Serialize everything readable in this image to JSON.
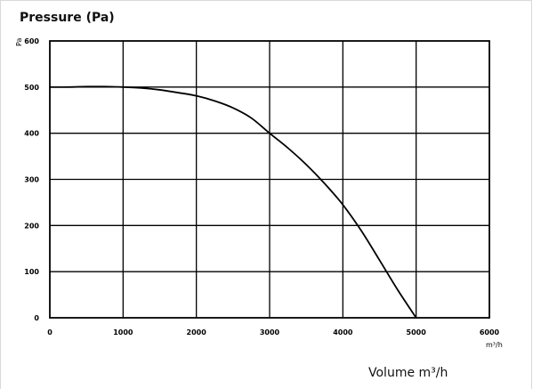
{
  "chart_data": {
    "type": "line",
    "title": "Pressure (Pa)",
    "ylabel": "Pa",
    "xlabel": "Volume m³/h",
    "x_unit": "m³/h",
    "xlim": [
      0,
      6000
    ],
    "ylim": [
      0,
      600
    ],
    "x_ticks": [
      0,
      1000,
      2000,
      3000,
      4000,
      5000,
      6000
    ],
    "y_ticks": [
      0,
      100,
      200,
      300,
      400,
      500,
      600
    ],
    "grid": true,
    "series": [
      {
        "color": "#000000",
        "x": [
          0,
          250,
          500,
          750,
          1000,
          1250,
          1500,
          1750,
          2000,
          2250,
          2500,
          2750,
          3000,
          3250,
          3500,
          3750,
          4000,
          4250,
          4500,
          4750,
          5000
        ],
        "y": [
          500,
          500,
          501,
          501,
          500,
          498,
          494,
          488,
          481,
          470,
          455,
          433,
          400,
          368,
          332,
          291,
          245,
          189,
          125,
          60,
          0
        ]
      }
    ]
  }
}
